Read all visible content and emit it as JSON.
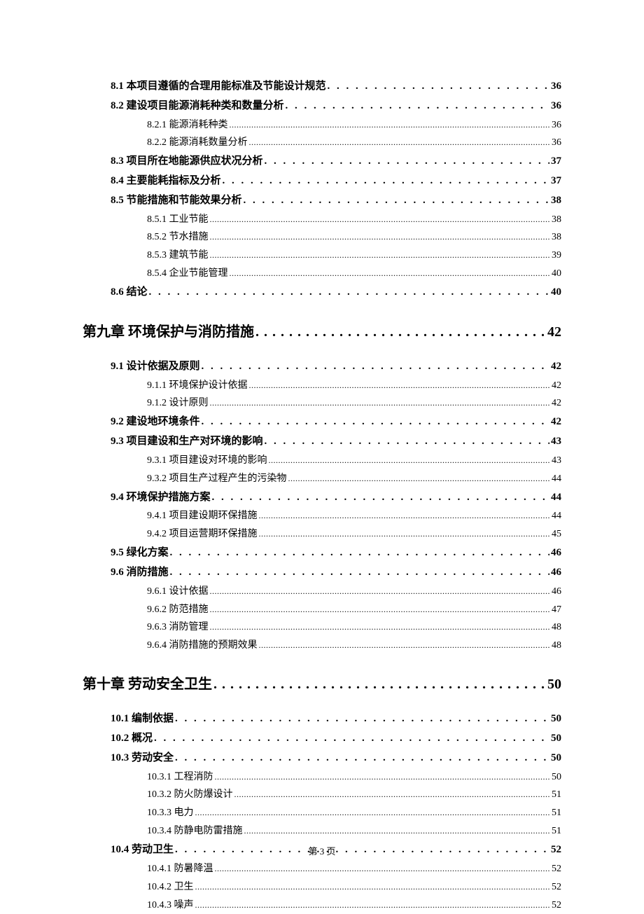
{
  "footer": "第 3 页",
  "dots_chapter": ". . . . . . . . . . . . . . . . . . . . . . . . . . . . . . . . . . . . . . . . . . . . . . . . . . . . . . . . . . . . . . . . . . . . . . . . . . . . . . . . . . . . . . . . . . . . . . . . . . . . . . . . . . . . . . . . . . . . . . . . . . . .",
  "dots_section": ". . . . . . . . . . . . . . . . . . . . . . . . . . . . . . . . . . . . . . . . . . . . . . . . . . . . . . . . . . . . . . . . . . . . . . . . . . . . . . . . . . . . . . . . . . . . . . . . . . . . . . . . . . . . . . . . . . . . . . . . . . . .",
  "dots_sub": "..........................................................................................................................................................................................................................................................................................................",
  "toc": [
    {
      "level": "section",
      "label": "8.1 本项目遵循的合理用能标准及节能设计规范",
      "page": "36"
    },
    {
      "level": "section",
      "label": "8.2 建设项目能源消耗种类和数量分析",
      "page": "36"
    },
    {
      "level": "sub",
      "label": "8.2.1 能源消耗种类",
      "page": "36"
    },
    {
      "level": "sub",
      "label": "8.2.2 能源消耗数量分析",
      "page": "36"
    },
    {
      "level": "section",
      "label": "8.3 项目所在地能源供应状况分析",
      "page": "37"
    },
    {
      "level": "section",
      "label": "8.4 主要能耗指标及分析",
      "page": "37"
    },
    {
      "level": "section",
      "label": "8.5 节能措施和节能效果分析",
      "page": "38"
    },
    {
      "level": "sub",
      "label": "8.5.1 工业节能",
      "page": "38"
    },
    {
      "level": "sub",
      "label": "8.5.2 节水措施",
      "page": "38"
    },
    {
      "level": "sub",
      "label": "8.5.3 建筑节能",
      "page": "39"
    },
    {
      "level": "sub",
      "label": "8.5.4 企业节能管理",
      "page": "40"
    },
    {
      "level": "section",
      "label": "8.6 结论",
      "page": "40"
    },
    {
      "level": "chapter",
      "label": "第九章  环境保护与消防措施",
      "page": "42"
    },
    {
      "level": "section",
      "label": "9.1 设计依据及原则",
      "page": "42"
    },
    {
      "level": "sub",
      "label": "9.1.1 环境保护设计依据",
      "page": "42"
    },
    {
      "level": "sub",
      "label": "9.1.2 设计原则",
      "page": "42"
    },
    {
      "level": "section",
      "label": "9.2 建设地环境条件",
      "page": "42"
    },
    {
      "level": "section",
      "label": "9.3  项目建设和生产对环境的影响",
      "page": "43"
    },
    {
      "level": "sub",
      "label": "9.3.1  项目建设对环境的影响",
      "page": "43"
    },
    {
      "level": "sub",
      "label": "9.3.2  项目生产过程产生的污染物",
      "page": "44"
    },
    {
      "level": "section",
      "label": "9.4  环境保护措施方案",
      "page": "44"
    },
    {
      "level": "sub",
      "label": "9.4.1  项目建设期环保措施",
      "page": "44"
    },
    {
      "level": "sub",
      "label": "9.4.2  项目运营期环保措施",
      "page": "45"
    },
    {
      "level": "section",
      "label": "9.5 绿化方案",
      "page": "46"
    },
    {
      "level": "section",
      "label": "9.6 消防措施",
      "page": "46"
    },
    {
      "level": "sub",
      "label": "9.6.1 设计依据",
      "page": "46"
    },
    {
      "level": "sub",
      "label": "9.6.2 防范措施",
      "page": "47"
    },
    {
      "level": "sub",
      "label": "9.6.3 消防管理",
      "page": "48"
    },
    {
      "level": "sub",
      "label": "9.6.4 消防措施的预期效果",
      "page": "48"
    },
    {
      "level": "chapter",
      "label": "第十章  劳动安全卫生",
      "page": "50"
    },
    {
      "level": "section",
      "label": "10.1  编制依据",
      "page": "50"
    },
    {
      "level": "section",
      "label": "10.2 概况",
      "page": "50"
    },
    {
      "level": "section",
      "label": "10.3  劳动安全",
      "page": "50"
    },
    {
      "level": "sub",
      "label": "10.3.1 工程消防",
      "page": "50"
    },
    {
      "level": "sub",
      "label": "10.3.2 防火防爆设计",
      "page": "51"
    },
    {
      "level": "sub",
      "label": "10.3.3 电力",
      "page": "51"
    },
    {
      "level": "sub",
      "label": "10.3.4 防静电防雷措施",
      "page": "51"
    },
    {
      "level": "section",
      "label": "10.4 劳动卫生",
      "page": "52"
    },
    {
      "level": "sub",
      "label": "10.4.1 防暑降温",
      "page": "52"
    },
    {
      "level": "sub",
      "label": "10.4.2 卫生",
      "page": "52"
    },
    {
      "level": "sub",
      "label": "10.4.3 噪声",
      "page": "52"
    }
  ]
}
